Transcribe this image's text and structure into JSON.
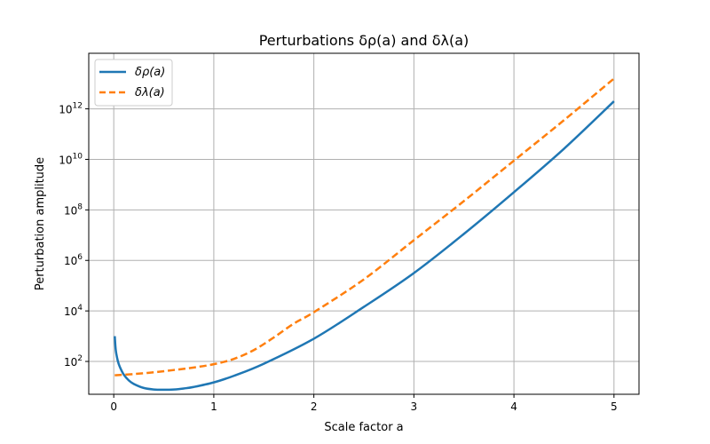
{
  "chart_data": {
    "type": "line",
    "title": "Perturbations δρ(a) and δλ(a)",
    "xlabel": "Scale factor a",
    "ylabel": "Perturbation amplitude",
    "xlim": [
      -0.25,
      5.25
    ],
    "ylim_log10": [
      0.7,
      14.2
    ],
    "yscale": "log",
    "grid": true,
    "legend_position": "top-left",
    "x_ticks": [
      0,
      1,
      2,
      3,
      4,
      5
    ],
    "x_tick_labels": [
      "0",
      "1",
      "2",
      "3",
      "4",
      "5"
    ],
    "y_ticks_log10": [
      2,
      4,
      6,
      8,
      10,
      12
    ],
    "y_tick_labels": [
      {
        "base": "10",
        "exp": "2"
      },
      {
        "base": "10",
        "exp": "4"
      },
      {
        "base": "10",
        "exp": "6"
      },
      {
        "base": "10",
        "exp": "8"
      },
      {
        "base": "10",
        "exp": "10"
      },
      {
        "base": "10",
        "exp": "12"
      }
    ],
    "series": [
      {
        "name": "δρ(a)",
        "color": "#1f77b4",
        "dash": "solid",
        "x": [
          0.01,
          0.02,
          0.04,
          0.06,
          0.1,
          0.15,
          0.2,
          0.3,
          0.4,
          0.5,
          0.6,
          0.7,
          0.8,
          1.0,
          1.2,
          1.5,
          2.0,
          2.5,
          3.0,
          3.5,
          4.0,
          4.5,
          5.0
        ],
        "log10_y": [
          3.0,
          2.45,
          2.03,
          1.79,
          1.48,
          1.25,
          1.11,
          0.95,
          0.89,
          0.88,
          0.89,
          0.93,
          0.99,
          1.17,
          1.43,
          1.91,
          2.9,
          4.16,
          5.5,
          7.05,
          8.7,
          10.42,
          12.3
        ]
      },
      {
        "name": "δλ(a)",
        "color": "#ff7f0e",
        "dash": "dashed",
        "x": [
          0.01,
          0.2,
          0.4,
          0.6,
          0.8,
          1.0,
          1.2,
          1.4,
          1.6,
          1.8,
          2.0,
          2.5,
          3.0,
          3.5,
          4.0,
          4.5,
          5.0
        ],
        "log10_y": [
          1.45,
          1.5,
          1.57,
          1.66,
          1.76,
          1.89,
          2.1,
          2.45,
          2.95,
          3.5,
          3.95,
          5.25,
          6.8,
          8.35,
          9.95,
          11.55,
          13.2
        ]
      }
    ]
  }
}
